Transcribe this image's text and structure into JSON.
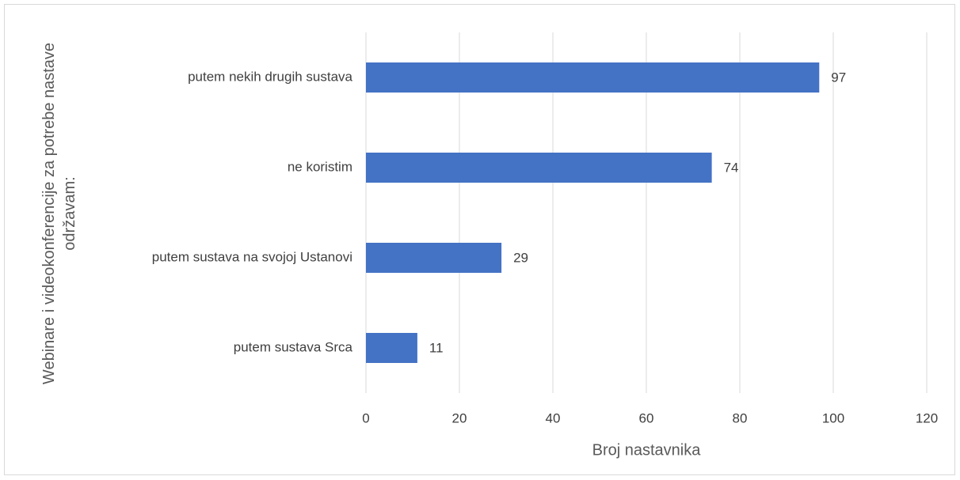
{
  "chart_data": {
    "type": "barh",
    "categories": [
      "putem nekih drugih sustava",
      "ne koristim",
      "putem sustava na svojoj Ustanovi",
      "putem sustava Srca"
    ],
    "values": [
      97,
      74,
      29,
      11
    ],
    "color": "#4472c4",
    "xlim": [
      0,
      120
    ],
    "xticks": [
      0,
      20,
      40,
      60,
      80,
      100,
      120
    ],
    "xlabel": "Broj nastavnika",
    "ylabel": "Webinare i videokonferencije za potrebe nastave održavam:",
    "grid": true
  }
}
